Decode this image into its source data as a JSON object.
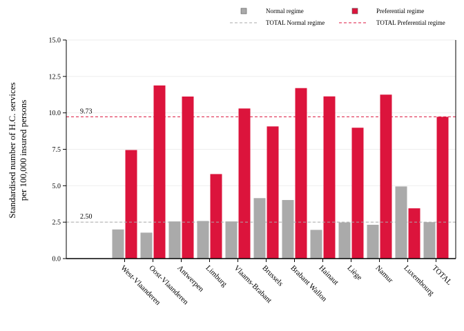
{
  "chart_data": {
    "type": "bar",
    "ylabel_line1": "Standardised number of H.C. services",
    "ylabel_line2": "per 100,000 insured persons",
    "xlabel": "",
    "ylim": [
      0,
      15
    ],
    "yticks": [
      "0.0",
      "2.5",
      "5.0",
      "7.5",
      "10.0",
      "12.5",
      "15.0"
    ],
    "ytick_values": [
      0,
      2.5,
      5,
      7.5,
      10,
      12.5,
      15
    ],
    "grid": "horizontal",
    "legend_position": "top-right",
    "categories": [
      "West-Vlaanderen",
      "Oost-Vlaanderen",
      "Antwerpen",
      "Limburg",
      "Vlaams-Brabant",
      "Brussels",
      "Brabant Wallon",
      "Hainaut",
      "Liège",
      "Namur",
      "Luxembourg",
      "TOTAL"
    ],
    "series": [
      {
        "name": "Normal regime",
        "color": "#aaaaaa",
        "values": [
          2.0,
          1.78,
          2.55,
          2.58,
          2.55,
          4.15,
          4.02,
          1.97,
          2.48,
          2.32,
          4.95,
          2.5
        ]
      },
      {
        "name": "Preferential regime",
        "color": "#dc143c",
        "values": [
          7.45,
          11.88,
          11.12,
          5.8,
          10.3,
          9.07,
          11.7,
          11.13,
          8.98,
          11.25,
          3.45,
          9.73
        ]
      }
    ],
    "reference_lines": [
      {
        "name": "TOTAL Normal regime",
        "value": 2.5,
        "label": "2.50",
        "color": "#aaaaaa"
      },
      {
        "name": "TOTAL Preferential regime",
        "value": 9.73,
        "label": "9.73",
        "color": "#dc143c"
      }
    ]
  }
}
